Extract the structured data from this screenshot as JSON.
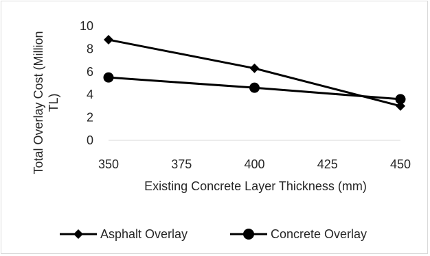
{
  "chart_data": {
    "type": "line",
    "title": "",
    "xlabel": "Existing Concrete Layer Thickness (mm)",
    "ylabel_lines": [
      "Total Overlay Cost (Million",
      "TL)"
    ],
    "x_ticks": [
      "350",
      "375",
      "400",
      "425",
      "450"
    ],
    "y_ticks": [
      "0",
      "2",
      "4",
      "6",
      "8",
      "10"
    ],
    "xlim": [
      350,
      450
    ],
    "ylim": [
      0,
      10
    ],
    "grid": false,
    "legend_position": "bottom",
    "series": [
      {
        "name": "Asphalt Overlay",
        "marker": "diamond",
        "color": "#000000",
        "x": [
          350,
          400,
          450
        ],
        "y": [
          8.8,
          6.3,
          3.0
        ]
      },
      {
        "name": "Concrete Overlay",
        "marker": "circle",
        "color": "#000000",
        "x": [
          350,
          400,
          450
        ],
        "y": [
          5.5,
          4.6,
          3.6
        ]
      }
    ]
  }
}
